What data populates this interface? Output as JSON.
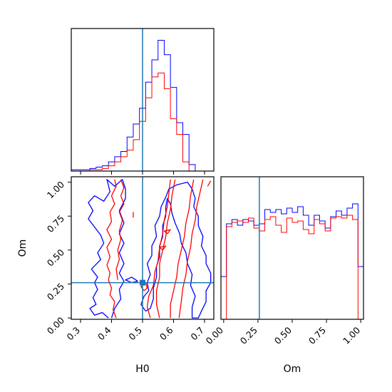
{
  "chart_data": {
    "type": "corner",
    "parameters": [
      "H0",
      "Om"
    ],
    "truths": {
      "H0": 0.5,
      "Om": 0.26
    },
    "colors": {
      "blue": "#0000ff",
      "red": "#ff0000",
      "truth": "#1f77b4"
    },
    "hist_h0": {
      "xlim": [
        0.27,
        0.73
      ],
      "bin_edges": [
        0.27,
        0.29,
        0.31,
        0.33,
        0.35,
        0.37,
        0.39,
        0.41,
        0.43,
        0.45,
        0.47,
        0.49,
        0.51,
        0.53,
        0.55,
        0.57,
        0.59,
        0.61,
        0.63,
        0.65,
        0.67,
        0.69,
        0.71
      ],
      "series": [
        {
          "color": "blue",
          "counts": [
            1,
            1,
            1,
            2,
            3,
            4,
            7,
            11,
            15,
            26,
            36,
            48,
            68,
            85,
            100,
            89,
            64,
            37,
            28,
            5,
            0,
            0
          ]
        },
        {
          "color": "red",
          "counts": [
            0,
            0,
            0,
            1,
            1,
            2,
            4,
            7,
            11,
            16,
            24,
            38,
            56,
            72,
            75,
            63,
            40,
            28,
            7,
            0,
            0,
            0
          ]
        }
      ],
      "xticks": [
        0.3,
        0.4,
        0.5,
        0.6,
        0.7
      ]
    },
    "hist_om": {
      "xlim": [
        -0.02,
        1.02
      ],
      "ylim": [
        0,
        1
      ],
      "bin_edges": [
        -0.02,
        0.02,
        0.06,
        0.1,
        0.14,
        0.18,
        0.22,
        0.26,
        0.3,
        0.34,
        0.38,
        0.42,
        0.46,
        0.5,
        0.54,
        0.58,
        0.62,
        0.66,
        0.7,
        0.74,
        0.78,
        0.82,
        0.86,
        0.9,
        0.94,
        0.98,
        1.02
      ],
      "series": [
        {
          "color": "blue",
          "counts": [
            0.3,
            0.67,
            0.7,
            0.66,
            0.7,
            0.69,
            0.66,
            0.67,
            0.77,
            0.75,
            0.77,
            0.74,
            0.78,
            0.75,
            0.79,
            0.73,
            0.66,
            0.73,
            0.69,
            0.64,
            0.72,
            0.76,
            0.73,
            0.78,
            0.81,
            0.37
          ]
        },
        {
          "color": "red",
          "counts": [
            0.0,
            0.65,
            0.68,
            0.69,
            0.68,
            0.71,
            0.64,
            0.62,
            0.7,
            0.72,
            0.66,
            0.61,
            0.71,
            0.68,
            0.69,
            0.63,
            0.6,
            0.7,
            0.67,
            0.62,
            0.71,
            0.72,
            0.71,
            0.73,
            0.7,
            0.0
          ]
        }
      ],
      "xticks": [
        0.0,
        0.25,
        0.5,
        0.75,
        1.0
      ],
      "xtick_labels": [
        "0.00",
        "0.25",
        "0.50",
        "0.75",
        "1.00"
      ]
    },
    "contour_2d": {
      "xlim": [
        0.27,
        0.73
      ],
      "ylim": [
        -0.01,
        1.04
      ],
      "xticks": [
        0.3,
        0.4,
        0.5,
        0.6,
        0.7
      ],
      "yticks": [
        0.0,
        0.25,
        0.5,
        0.75,
        1.0
      ],
      "ytick_labels": [
        "0.00",
        "0.25",
        "0.50",
        "0.75",
        "1.00"
      ],
      "xlabel": "H0",
      "ylabel": "Om",
      "contours": [
        {
          "color": "blue",
          "points": [
            [
              0.39,
              0.0
            ],
            [
              0.37,
              0.04
            ],
            [
              0.345,
              0.02
            ],
            [
              0.33,
              0.07
            ],
            [
              0.35,
              0.1
            ],
            [
              0.34,
              0.15
            ],
            [
              0.355,
              0.21
            ],
            [
              0.345,
              0.26
            ],
            [
              0.355,
              0.3
            ],
            [
              0.335,
              0.36
            ],
            [
              0.365,
              0.43
            ],
            [
              0.355,
              0.48
            ],
            [
              0.375,
              0.55
            ],
            [
              0.365,
              0.61
            ],
            [
              0.345,
              0.67
            ],
            [
              0.325,
              0.73
            ],
            [
              0.34,
              0.79
            ],
            [
              0.325,
              0.85
            ],
            [
              0.345,
              0.9
            ],
            [
              0.375,
              0.86
            ],
            [
              0.395,
              0.93
            ],
            [
              0.385,
              1.02
            ],
            [
              0.41,
              0.97
            ],
            [
              0.435,
              1.02
            ],
            [
              0.445,
              0.95
            ],
            [
              0.445,
              0.88
            ],
            [
              0.425,
              0.79
            ],
            [
              0.44,
              0.7
            ],
            [
              0.425,
              0.62
            ],
            [
              0.44,
              0.55
            ],
            [
              0.425,
              0.48
            ],
            [
              0.44,
              0.4
            ],
            [
              0.425,
              0.33
            ],
            [
              0.44,
              0.27
            ],
            [
              0.425,
              0.21
            ],
            [
              0.43,
              0.14
            ],
            [
              0.41,
              0.07
            ],
            [
              0.4,
              0.0
            ]
          ]
        },
        {
          "color": "blue",
          "points": [
            [
              0.485,
              0.27
            ],
            [
              0.465,
              0.3
            ],
            [
              0.445,
              0.28
            ],
            [
              0.465,
              0.26
            ],
            [
              0.485,
              0.27
            ]
          ]
        },
        {
          "color": "blue",
          "points": [
            [
              0.51,
              0.05
            ],
            [
              0.495,
              0.1
            ],
            [
              0.505,
              0.16
            ],
            [
              0.52,
              0.2
            ],
            [
              0.515,
              0.26
            ],
            [
              0.525,
              0.32
            ],
            [
              0.515,
              0.4
            ],
            [
              0.53,
              0.46
            ],
            [
              0.53,
              0.53
            ],
            [
              0.545,
              0.6
            ],
            [
              0.54,
              0.68
            ],
            [
              0.555,
              0.75
            ],
            [
              0.56,
              0.82
            ],
            [
              0.575,
              0.89
            ],
            [
              0.585,
              0.95
            ],
            [
              0.61,
              0.98
            ],
            [
              0.645,
              1.0
            ],
            [
              0.66,
              0.95
            ],
            [
              0.67,
              0.88
            ],
            [
              0.665,
              0.82
            ],
            [
              0.68,
              0.75
            ],
            [
              0.68,
              0.68
            ],
            [
              0.695,
              0.6
            ],
            [
              0.69,
              0.53
            ],
            [
              0.705,
              0.46
            ],
            [
              0.705,
              0.4
            ],
            [
              0.72,
              0.33
            ],
            [
              0.72,
              0.26
            ],
            [
              0.705,
              0.2
            ],
            [
              0.705,
              0.12
            ],
            [
              0.69,
              0.05
            ],
            [
              0.68,
              0.0
            ],
            [
              0.66,
              0.0
            ],
            [
              0.66,
              0.08
            ],
            [
              0.67,
              0.16
            ],
            [
              0.655,
              0.24
            ],
            [
              0.66,
              0.32
            ],
            [
              0.645,
              0.4
            ],
            [
              0.64,
              0.48
            ],
            [
              0.625,
              0.55
            ],
            [
              0.62,
              0.62
            ],
            [
              0.605,
              0.7
            ],
            [
              0.595,
              0.77
            ],
            [
              0.59,
              0.84
            ],
            [
              0.58,
              0.88
            ],
            [
              0.575,
              0.82
            ],
            [
              0.575,
              0.75
            ],
            [
              0.565,
              0.68
            ],
            [
              0.565,
              0.6
            ],
            [
              0.555,
              0.53
            ],
            [
              0.555,
              0.45
            ],
            [
              0.545,
              0.38
            ],
            [
              0.545,
              0.3
            ],
            [
              0.535,
              0.22
            ],
            [
              0.535,
              0.14
            ],
            [
              0.525,
              0.07
            ],
            [
              0.51,
              0.05
            ]
          ]
        },
        {
          "color": "red",
          "points": [
            [
              0.415,
              0.0
            ],
            [
              0.405,
              0.06
            ],
            [
              0.41,
              0.12
            ],
            [
              0.395,
              0.17
            ],
            [
              0.4,
              0.22
            ],
            [
              0.39,
              0.28
            ],
            [
              0.395,
              0.33
            ],
            [
              0.385,
              0.39
            ],
            [
              0.395,
              0.45
            ],
            [
              0.385,
              0.52
            ],
            [
              0.4,
              0.58
            ],
            [
              0.385,
              0.65
            ],
            [
              0.4,
              0.71
            ],
            [
              0.395,
              0.78
            ],
            [
              0.41,
              0.84
            ],
            [
              0.4,
              0.9
            ],
            [
              0.415,
              0.97
            ],
            [
              0.41,
              1.02
            ]
          ]
        },
        {
          "color": "red",
          "points": [
            [
              0.43,
              1.02
            ],
            [
              0.44,
              0.96
            ],
            [
              0.43,
              0.9
            ],
            [
              0.44,
              0.84
            ],
            [
              0.425,
              0.78
            ],
            [
              0.435,
              0.72
            ],
            [
              0.425,
              0.64
            ],
            [
              0.43,
              0.58
            ],
            [
              0.42,
              0.5
            ],
            [
              0.425,
              0.43
            ],
            [
              0.415,
              0.36
            ],
            [
              0.42,
              0.28
            ]
          ]
        },
        {
          "color": "red",
          "points": [
            [
              0.47,
              0.78
            ],
            [
              0.47,
              0.74
            ]
          ]
        },
        {
          "color": "red",
          "points": [
            [
              0.505,
              0.2
            ],
            [
              0.495,
              0.23
            ],
            [
              0.51,
              0.26
            ],
            [
              0.515,
              0.22
            ],
            [
              0.505,
              0.2
            ]
          ]
        },
        {
          "color": "red",
          "points": [
            [
              0.555,
              0.0
            ],
            [
              0.545,
              0.1
            ],
            [
              0.545,
              0.2
            ],
            [
              0.555,
              0.3
            ],
            [
              0.555,
              0.4
            ],
            [
              0.565,
              0.5
            ],
            [
              0.575,
              0.6
            ],
            [
              0.58,
              0.7
            ],
            [
              0.59,
              0.8
            ],
            [
              0.595,
              0.9
            ],
            [
              0.605,
              1.02
            ]
          ]
        },
        {
          "color": "red",
          "points": [
            [
              0.525,
              0.0
            ],
            [
              0.515,
              0.08
            ],
            [
              0.52,
              0.16
            ],
            [
              0.535,
              0.24
            ],
            [
              0.54,
              0.34
            ],
            [
              0.55,
              0.42
            ],
            [
              0.555,
              0.52
            ],
            [
              0.565,
              0.62
            ],
            [
              0.57,
              0.72
            ],
            [
              0.58,
              0.82
            ],
            [
              0.585,
              0.92
            ],
            [
              0.59,
              1.02
            ]
          ]
        },
        {
          "color": "red",
          "points": [
            [
              0.59,
              0.0
            ],
            [
              0.59,
              0.1
            ],
            [
              0.6,
              0.2
            ],
            [
              0.61,
              0.3
            ],
            [
              0.615,
              0.4
            ],
            [
              0.625,
              0.5
            ],
            [
              0.635,
              0.6
            ],
            [
              0.64,
              0.7
            ],
            [
              0.65,
              0.8
            ],
            [
              0.655,
              0.9
            ],
            [
              0.665,
              1.02
            ]
          ]
        },
        {
          "color": "red",
          "points": [
            [
              0.618,
              0.0
            ],
            [
              0.625,
              0.12
            ],
            [
              0.63,
              0.22
            ],
            [
              0.64,
              0.32
            ],
            [
              0.645,
              0.42
            ],
            [
              0.655,
              0.52
            ],
            [
              0.66,
              0.62
            ],
            [
              0.67,
              0.72
            ],
            [
              0.675,
              0.82
            ],
            [
              0.685,
              0.92
            ],
            [
              0.695,
              1.02
            ]
          ]
        },
        {
          "color": "red",
          "points": [
            [
              0.58,
              0.62
            ],
            [
              0.57,
              0.64
            ],
            [
              0.59,
              0.65
            ],
            [
              0.58,
              0.62
            ]
          ]
        },
        {
          "color": "red",
          "points": [
            [
              0.565,
              0.5
            ],
            [
              0.555,
              0.52
            ],
            [
              0.575,
              0.53
            ],
            [
              0.565,
              0.5
            ]
          ]
        },
        {
          "color": "red",
          "points": [
            [
              0.71,
              0.97
            ],
            [
              0.72,
              1.01
            ]
          ]
        }
      ]
    }
  }
}
